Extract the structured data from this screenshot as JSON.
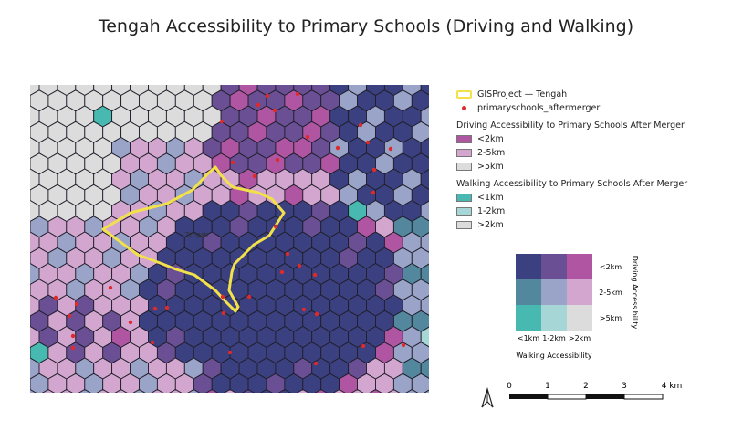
{
  "title": "Tengah Accessibility to Primary Schools (Driving and Walking)",
  "map": {
    "place_label": "Tengah",
    "colors": {
      "d_lt2_w_lt1": "#3b4080",
      "d_lt2_w_1_2": "#6a4f94",
      "d_lt2_w_gt2": "#b055a2",
      "d_2_5_w_lt1": "#52879e",
      "d_2_5_w_1_2": "#9aa3c8",
      "d_2_5_w_gt2": "#d3a6cf",
      "d_gt5_w_lt1": "#48b9b1",
      "d_gt5_w_1_2": "#a6d7d6",
      "d_gt5_w_gt2": "#dcdcdc",
      "boundary": "#f2e14a",
      "school_point": "#e02a2a"
    }
  },
  "legend": {
    "project_label": "GISProject — Tengah",
    "schools_label": "primaryschools_aftermerger",
    "driving_title": "Driving Accessibility to Primary Schools After Merger",
    "driving_items": [
      {
        "label": "<2km",
        "color": "#b055a2"
      },
      {
        "label": "2-5km",
        "color": "#d3a6cf"
      },
      {
        "label": ">5km",
        "color": "#dcdcdc"
      }
    ],
    "walking_title": "Walking Accessibility to Primary Schools After Merger",
    "walking_items": [
      {
        "label": "<1km",
        "color": "#48b9b1"
      },
      {
        "label": "1-2km",
        "color": "#a6d7d6"
      },
      {
        "label": ">2km",
        "color": "#dcdcdc"
      }
    ]
  },
  "bivariate": {
    "row_labels": [
      "<2km",
      "2-5km",
      ">5km"
    ],
    "col_labels": [
      "<1km",
      "1-2km",
      ">2km"
    ],
    "x_title": "Walking Accessibility",
    "y_title": "Driving Accessibility",
    "grid": [
      [
        "#3b4080",
        "#6a4f94",
        "#b055a2"
      ],
      [
        "#52879e",
        "#9aa3c8",
        "#d3a6cf"
      ],
      [
        "#48b9b1",
        "#a6d7d6",
        "#dcdcdc"
      ]
    ]
  },
  "scalebar": {
    "ticks": [
      "0",
      "1",
      "2",
      "3",
      "4 km"
    ]
  }
}
